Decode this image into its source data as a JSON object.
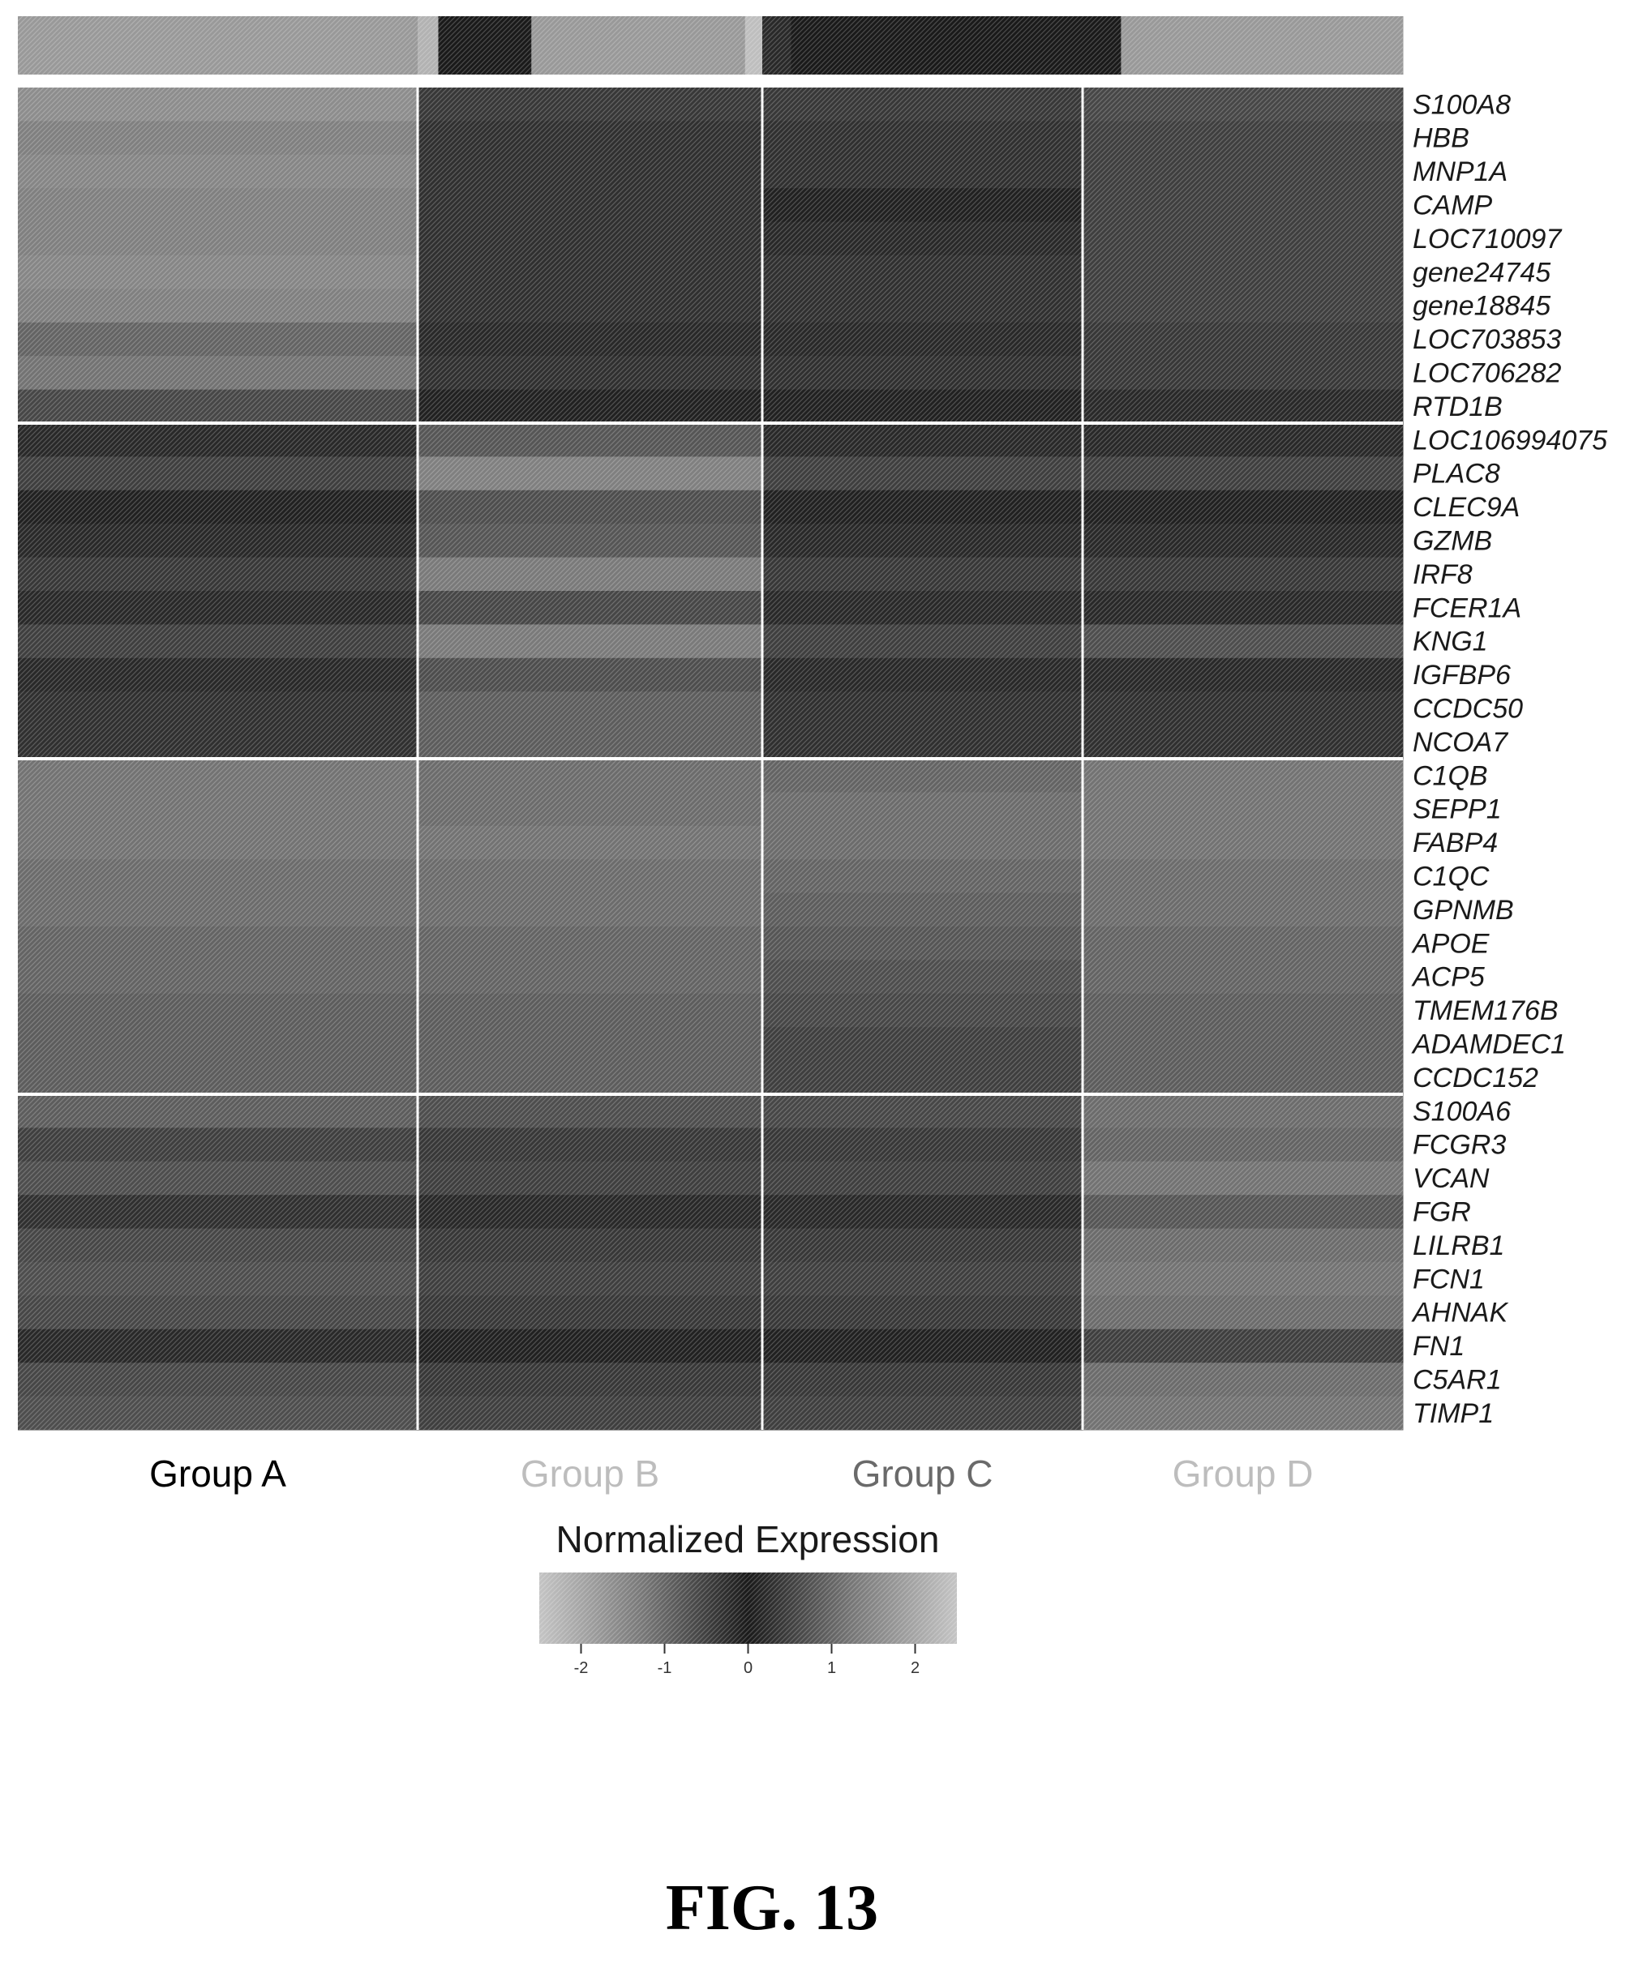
{
  "chart_data": {
    "type": "heatmap",
    "title": "",
    "figure_label": "FIG. 13",
    "xlabel": "",
    "ylabel": "",
    "groups": [
      {
        "name": "Group A",
        "label_color": "#000000"
      },
      {
        "name": "Group B",
        "label_color": "#bdbdbd"
      },
      {
        "name": "Group C",
        "label_color": "#6a6a6a"
      },
      {
        "name": "Group D",
        "label_color": "#bdbdbd"
      }
    ],
    "genes": [
      "S100A8",
      "HBB",
      "MNP1A",
      "CAMP",
      "LOC710097",
      "gene24745",
      "gene18845",
      "LOC703853",
      "LOC706282",
      "RTD1B",
      "LOC106994075",
      "PLAC8",
      "CLEC9A",
      "GZMB",
      "IRF8",
      "FCER1A",
      "KNG1",
      "IGFBP6",
      "CCDC50",
      "NCOA7",
      "C1QB",
      "SEPP1",
      "FABP4",
      "C1QC",
      "GPNMB",
      "APOE",
      "ACP5",
      "TMEM176B",
      "ADAMDEC1",
      "CCDC152",
      "S100A6",
      "FCGR3",
      "VCAN",
      "FGR",
      "LILRB1",
      "FCN1",
      "AHNAK",
      "FN1",
      "C5AR1",
      "TIMP1"
    ],
    "gene_modules": [
      {
        "name": "",
        "start": 0,
        "end": 9
      },
      {
        "name": "",
        "start": 10,
        "end": 19
      },
      {
        "name": "",
        "start": 20,
        "end": 29
      },
      {
        "name": "",
        "start": 30,
        "end": 39
      }
    ],
    "values": [
      [
        1.6,
        0.4,
        0.4,
        0.6
      ],
      [
        1.4,
        0.3,
        0.3,
        0.5
      ],
      [
        1.5,
        0.3,
        0.3,
        0.5
      ],
      [
        1.4,
        0.3,
        0.1,
        0.5
      ],
      [
        1.4,
        0.3,
        0.2,
        0.5
      ],
      [
        1.5,
        0.3,
        0.3,
        0.5
      ],
      [
        1.4,
        0.3,
        0.3,
        0.5
      ],
      [
        1.0,
        0.2,
        0.2,
        0.4
      ],
      [
        1.2,
        0.3,
        0.3,
        0.4
      ],
      [
        0.6,
        0.1,
        0.1,
        0.2
      ],
      [
        0.2,
        0.8,
        0.2,
        0.2
      ],
      [
        0.5,
        1.4,
        0.5,
        0.5
      ],
      [
        0.1,
        0.7,
        0.1,
        0.1
      ],
      [
        0.2,
        0.8,
        0.2,
        0.2
      ],
      [
        0.4,
        1.3,
        0.4,
        0.4
      ],
      [
        0.2,
        0.6,
        0.2,
        0.2
      ],
      [
        0.5,
        1.3,
        0.5,
        0.7
      ],
      [
        0.2,
        0.7,
        0.2,
        0.2
      ],
      [
        0.3,
        0.9,
        0.3,
        0.3
      ],
      [
        0.3,
        0.9,
        0.3,
        0.3
      ],
      [
        1.2,
        1.1,
        1.0,
        1.2
      ],
      [
        1.2,
        1.1,
        1.1,
        1.2
      ],
      [
        1.2,
        1.2,
        1.1,
        1.2
      ],
      [
        1.1,
        1.1,
        1.0,
        1.1
      ],
      [
        1.1,
        1.1,
        0.9,
        1.1
      ],
      [
        1.0,
        1.0,
        0.8,
        1.0
      ],
      [
        1.0,
        1.0,
        0.7,
        1.0
      ],
      [
        0.9,
        0.9,
        0.6,
        0.9
      ],
      [
        0.9,
        0.9,
        0.5,
        0.9
      ],
      [
        0.9,
        0.9,
        0.5,
        0.9
      ],
      [
        0.9,
        0.7,
        0.6,
        1.1
      ],
      [
        0.5,
        0.4,
        0.4,
        1.0
      ],
      [
        0.7,
        0.5,
        0.5,
        1.2
      ],
      [
        0.3,
        0.2,
        0.2,
        0.8
      ],
      [
        0.6,
        0.4,
        0.4,
        1.1
      ],
      [
        0.7,
        0.5,
        0.5,
        1.2
      ],
      [
        0.6,
        0.4,
        0.4,
        1.1
      ],
      [
        0.2,
        0.1,
        0.1,
        0.5
      ],
      [
        0.6,
        0.4,
        0.4,
        1.1
      ],
      [
        0.7,
        0.5,
        0.5,
        1.2
      ]
    ],
    "annotation_bar": [
      {
        "group": "Group A",
        "segments": [
          {
            "fraction": 1.0,
            "value": 1.8
          }
        ]
      },
      {
        "group": "Group B",
        "segments": [
          {
            "fraction": 0.06,
            "value": 2.2
          },
          {
            "fraction": 0.27,
            "value": 0.0
          },
          {
            "fraction": 0.62,
            "value": 1.8
          },
          {
            "fraction": 0.05,
            "value": 2.4
          }
        ]
      },
      {
        "group": "Group C",
        "segments": [
          {
            "fraction": 0.09,
            "value": 0.2
          },
          {
            "fraction": 0.91,
            "value": 0.0
          }
        ]
      },
      {
        "group": "Group D",
        "segments": [
          {
            "fraction": 0.12,
            "value": 0.0
          },
          {
            "fraction": 0.88,
            "value": 1.8
          }
        ]
      }
    ],
    "color_scale": {
      "title": "Normalized Expression",
      "min": -2.5,
      "max": 2.5,
      "ticks": [
        -2,
        -1,
        0,
        1,
        2
      ],
      "tick_labels": [
        "-2",
        "-1",
        "0",
        "1",
        "2"
      ],
      "colors": [
        "#c4c4c4",
        "#777777",
        "#1a1a1a",
        "#777777",
        "#c4c4c4"
      ]
    },
    "grid": false,
    "legend_position": "bottom-center",
    "colors": {
      "separator": "#ffffff",
      "background": "#ffffff"
    }
  }
}
